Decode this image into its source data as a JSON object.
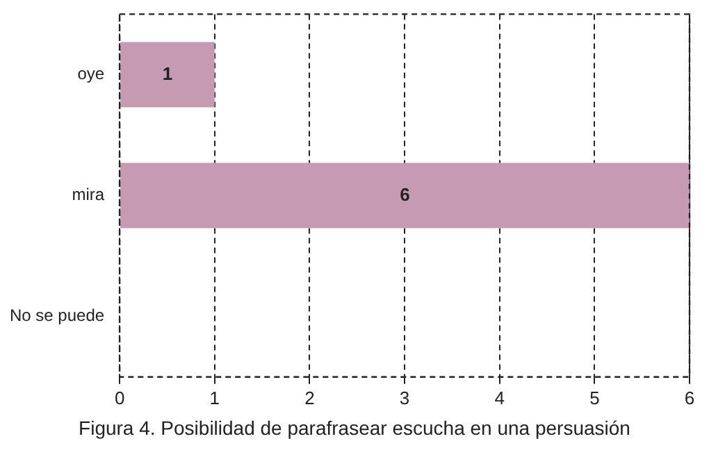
{
  "chart_data": {
    "type": "bar",
    "orientation": "horizontal",
    "categories": [
      "oye",
      "mira",
      "No se puede"
    ],
    "values": [
      1,
      6,
      0
    ],
    "color": "#c69bb1",
    "value_labels": [
      "1",
      "6",
      null
    ],
    "xlim": [
      0,
      6
    ],
    "xticks": [
      0,
      1,
      2,
      3,
      4,
      5,
      6
    ],
    "grid": "x",
    "legend": false,
    "annotations": [
      "Figura 4. Posibilidad de parafrasear escucha en una persuasión"
    ]
  }
}
